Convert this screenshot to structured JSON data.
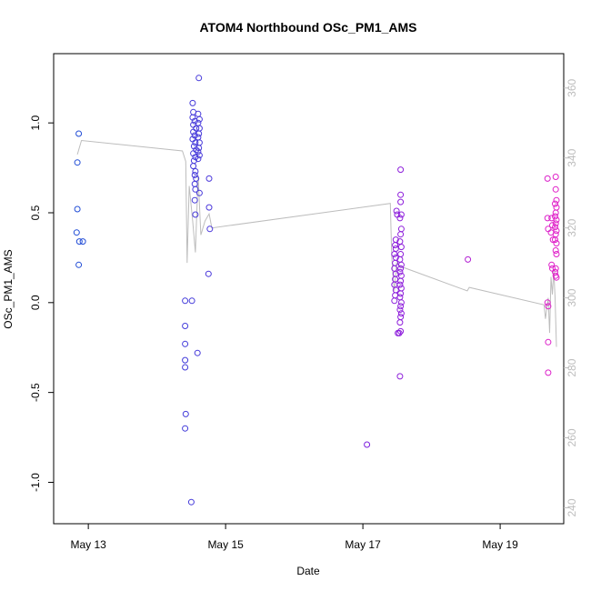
{
  "chart_data": {
    "type": "scatter",
    "title": "ATOM4 Northbound OSc_PM1_AMS",
    "xlabel": "Date",
    "ylabel": "OSc_PM1_AMS",
    "x_unit": "days since May 12",
    "xlim": [
      0.72,
      7.82
    ],
    "ylim": [
      -1.2,
      1.35
    ],
    "x_ticks": [
      {
        "value": 1,
        "label": "May 13"
      },
      {
        "value": 3,
        "label": "May 15"
      },
      {
        "value": 5,
        "label": "May 17"
      },
      {
        "value": 7,
        "label": "May 19"
      }
    ],
    "y_ticks": [
      -1.0,
      -0.5,
      0.0,
      0.5,
      1.0
    ],
    "y_tick_labels": [
      "-1.0",
      "-0.5",
      "0.0",
      "0.5",
      "1.0"
    ],
    "y2_range": [
      237,
      368
    ],
    "y2_ticks": [
      240,
      260,
      280,
      300,
      320,
      340,
      360
    ],
    "colors": {
      "blue": "#1f4fd6",
      "purple": "#7a1fe0",
      "magenta": "#e01fc8",
      "line": "#bdbdbd",
      "axis": "#000000",
      "right_axis": "#bdbdbd"
    },
    "scatter_points": [
      {
        "x": 0.84,
        "y": 0.78
      },
      {
        "x": 0.86,
        "y": 0.94
      },
      {
        "x": 0.84,
        "y": 0.52
      },
      {
        "x": 0.83,
        "y": 0.39
      },
      {
        "x": 0.87,
        "y": 0.34
      },
      {
        "x": 0.92,
        "y": 0.34
      },
      {
        "x": 0.86,
        "y": 0.21
      },
      {
        "x": 2.41,
        "y": 0.01
      },
      {
        "x": 2.41,
        "y": -0.13
      },
      {
        "x": 2.41,
        "y": -0.23
      },
      {
        "x": 2.41,
        "y": -0.32
      },
      {
        "x": 2.41,
        "y": -0.36
      },
      {
        "x": 2.42,
        "y": -0.62
      },
      {
        "x": 2.41,
        "y": -0.7
      },
      {
        "x": 2.52,
        "y": 1.11
      },
      {
        "x": 2.53,
        "y": 1.06
      },
      {
        "x": 2.52,
        "y": 1.03
      },
      {
        "x": 2.55,
        "y": 1.01
      },
      {
        "x": 2.53,
        "y": 0.99
      },
      {
        "x": 2.57,
        "y": 0.97
      },
      {
        "x": 2.53,
        "y": 0.95
      },
      {
        "x": 2.55,
        "y": 0.93
      },
      {
        "x": 2.52,
        "y": 0.91
      },
      {
        "x": 2.56,
        "y": 0.89
      },
      {
        "x": 2.54,
        "y": 0.87
      },
      {
        "x": 2.57,
        "y": 0.85
      },
      {
        "x": 2.53,
        "y": 0.83
      },
      {
        "x": 2.56,
        "y": 0.81
      },
      {
        "x": 2.54,
        "y": 0.79
      },
      {
        "x": 2.53,
        "y": 0.76
      },
      {
        "x": 2.56,
        "y": 0.73
      },
      {
        "x": 2.55,
        "y": 0.71
      },
      {
        "x": 2.57,
        "y": 0.69
      },
      {
        "x": 2.55,
        "y": 0.66
      },
      {
        "x": 2.56,
        "y": 0.63
      },
      {
        "x": 2.55,
        "y": 0.57
      },
      {
        "x": 2.56,
        "y": 0.49
      },
      {
        "x": 2.61,
        "y": 1.25
      },
      {
        "x": 2.6,
        "y": 1.05
      },
      {
        "x": 2.62,
        "y": 1.02
      },
      {
        "x": 2.6,
        "y": 1.0
      },
      {
        "x": 2.62,
        "y": 0.97
      },
      {
        "x": 2.61,
        "y": 0.94
      },
      {
        "x": 2.6,
        "y": 0.92
      },
      {
        "x": 2.62,
        "y": 0.89
      },
      {
        "x": 2.61,
        "y": 0.86
      },
      {
        "x": 2.6,
        "y": 0.84
      },
      {
        "x": 2.62,
        "y": 0.82
      },
      {
        "x": 2.6,
        "y": 0.8
      },
      {
        "x": 2.62,
        "y": 0.61
      },
      {
        "x": 2.59,
        "y": -0.28
      },
      {
        "x": 2.51,
        "y": 0.01
      },
      {
        "x": 2.5,
        "y": -1.11
      },
      {
        "x": 2.76,
        "y": 0.69
      },
      {
        "x": 2.76,
        "y": 0.53
      },
      {
        "x": 2.77,
        "y": 0.41
      },
      {
        "x": 2.75,
        "y": 0.16
      },
      {
        "x": 5.06,
        "y": -0.79
      },
      {
        "x": 5.48,
        "y": 0.35
      },
      {
        "x": 5.47,
        "y": 0.32
      },
      {
        "x": 5.48,
        "y": 0.3
      },
      {
        "x": 5.46,
        "y": 0.27
      },
      {
        "x": 5.48,
        "y": 0.25
      },
      {
        "x": 5.47,
        "y": 0.22
      },
      {
        "x": 5.46,
        "y": 0.19
      },
      {
        "x": 5.48,
        "y": 0.16
      },
      {
        "x": 5.47,
        "y": 0.13
      },
      {
        "x": 5.46,
        "y": 0.1
      },
      {
        "x": 5.48,
        "y": 0.07
      },
      {
        "x": 5.47,
        "y": 0.04
      },
      {
        "x": 5.46,
        "y": 0.01
      },
      {
        "x": 5.49,
        "y": 0.51
      },
      {
        "x": 5.5,
        "y": 0.49
      },
      {
        "x": 5.55,
        "y": 0.74
      },
      {
        "x": 5.55,
        "y": 0.6
      },
      {
        "x": 5.55,
        "y": 0.56
      },
      {
        "x": 5.56,
        "y": 0.49
      },
      {
        "x": 5.54,
        "y": 0.47
      },
      {
        "x": 5.56,
        "y": 0.41
      },
      {
        "x": 5.55,
        "y": 0.38
      },
      {
        "x": 5.54,
        "y": 0.34
      },
      {
        "x": 5.56,
        "y": 0.31
      },
      {
        "x": 5.55,
        "y": 0.27
      },
      {
        "x": 5.54,
        "y": 0.24
      },
      {
        "x": 5.56,
        "y": 0.21
      },
      {
        "x": 5.55,
        "y": 0.19
      },
      {
        "x": 5.54,
        "y": 0.17
      },
      {
        "x": 5.56,
        "y": 0.15
      },
      {
        "x": 5.55,
        "y": 0.12
      },
      {
        "x": 5.54,
        "y": 0.1
      },
      {
        "x": 5.56,
        "y": 0.08
      },
      {
        "x": 5.55,
        "y": 0.05
      },
      {
        "x": 5.54,
        "y": 0.03
      },
      {
        "x": 5.56,
        "y": 0.0
      },
      {
        "x": 5.55,
        "y": -0.02
      },
      {
        "x": 5.54,
        "y": -0.04
      },
      {
        "x": 5.56,
        "y": -0.06
      },
      {
        "x": 5.55,
        "y": -0.08
      },
      {
        "x": 5.54,
        "y": -0.11
      },
      {
        "x": 5.55,
        "y": -0.16
      },
      {
        "x": 5.53,
        "y": -0.17
      },
      {
        "x": 5.51,
        "y": -0.17
      },
      {
        "x": 5.54,
        "y": -0.41
      },
      {
        "x": 6.53,
        "y": 0.24
      },
      {
        "x": 7.69,
        "y": 0.69
      },
      {
        "x": 7.69,
        "y": 0.47
      },
      {
        "x": 7.7,
        "y": 0.41
      },
      {
        "x": 7.69,
        "y": 0.0
      },
      {
        "x": 7.7,
        "y": -0.02
      },
      {
        "x": 7.7,
        "y": -0.22
      },
      {
        "x": 7.7,
        "y": -0.39
      },
      {
        "x": 7.75,
        "y": 0.47
      },
      {
        "x": 7.76,
        "y": 0.43
      },
      {
        "x": 7.74,
        "y": 0.39
      },
      {
        "x": 7.77,
        "y": 0.35
      },
      {
        "x": 7.75,
        "y": 0.21
      },
      {
        "x": 7.76,
        "y": 0.19
      },
      {
        "x": 7.81,
        "y": 0.7
      },
      {
        "x": 7.81,
        "y": 0.63
      },
      {
        "x": 7.82,
        "y": 0.57
      },
      {
        "x": 7.8,
        "y": 0.55
      },
      {
        "x": 7.82,
        "y": 0.53
      },
      {
        "x": 7.81,
        "y": 0.5
      },
      {
        "x": 7.8,
        "y": 0.48
      },
      {
        "x": 7.82,
        "y": 0.46
      },
      {
        "x": 7.81,
        "y": 0.44
      },
      {
        "x": 7.8,
        "y": 0.42
      },
      {
        "x": 7.82,
        "y": 0.4
      },
      {
        "x": 7.81,
        "y": 0.38
      },
      {
        "x": 7.8,
        "y": 0.35
      },
      {
        "x": 7.82,
        "y": 0.33
      },
      {
        "x": 7.81,
        "y": 0.29
      },
      {
        "x": 7.82,
        "y": 0.27
      },
      {
        "x": 7.81,
        "y": 0.19
      },
      {
        "x": 7.8,
        "y": 0.17
      },
      {
        "x": 7.81,
        "y": 0.15
      },
      {
        "x": 7.82,
        "y": 0.14
      }
    ],
    "line_series": {
      "name": "secondary (right axis)",
      "points": [
        {
          "x": 0.84,
          "y2": 341
        },
        {
          "x": 0.9,
          "y2": 345
        },
        {
          "x": 2.37,
          "y2": 342
        },
        {
          "x": 2.42,
          "y2": 339
        },
        {
          "x": 2.44,
          "y2": 310
        },
        {
          "x": 2.47,
          "y2": 332
        },
        {
          "x": 2.52,
          "y2": 322
        },
        {
          "x": 2.56,
          "y2": 313
        },
        {
          "x": 2.6,
          "y2": 335
        },
        {
          "x": 2.64,
          "y2": 318
        },
        {
          "x": 2.7,
          "y2": 322
        },
        {
          "x": 2.76,
          "y2": 324
        },
        {
          "x": 2.8,
          "y2": 320
        },
        {
          "x": 5.4,
          "y2": 327
        },
        {
          "x": 5.42,
          "y2": 312
        },
        {
          "x": 5.44,
          "y2": 306
        },
        {
          "x": 5.46,
          "y2": 302
        },
        {
          "x": 5.49,
          "y2": 310
        },
        {
          "x": 5.55,
          "y2": 309
        },
        {
          "x": 6.52,
          "y2": 302
        },
        {
          "x": 6.55,
          "y2": 303
        },
        {
          "x": 7.64,
          "y2": 298
        },
        {
          "x": 7.66,
          "y2": 294
        },
        {
          "x": 7.68,
          "y2": 297
        },
        {
          "x": 7.7,
          "y2": 300
        },
        {
          "x": 7.72,
          "y2": 290
        },
        {
          "x": 7.74,
          "y2": 306
        },
        {
          "x": 7.76,
          "y2": 301
        },
        {
          "x": 7.78,
          "y2": 308
        },
        {
          "x": 7.8,
          "y2": 300
        },
        {
          "x": 7.82,
          "y2": 286
        }
      ]
    }
  }
}
